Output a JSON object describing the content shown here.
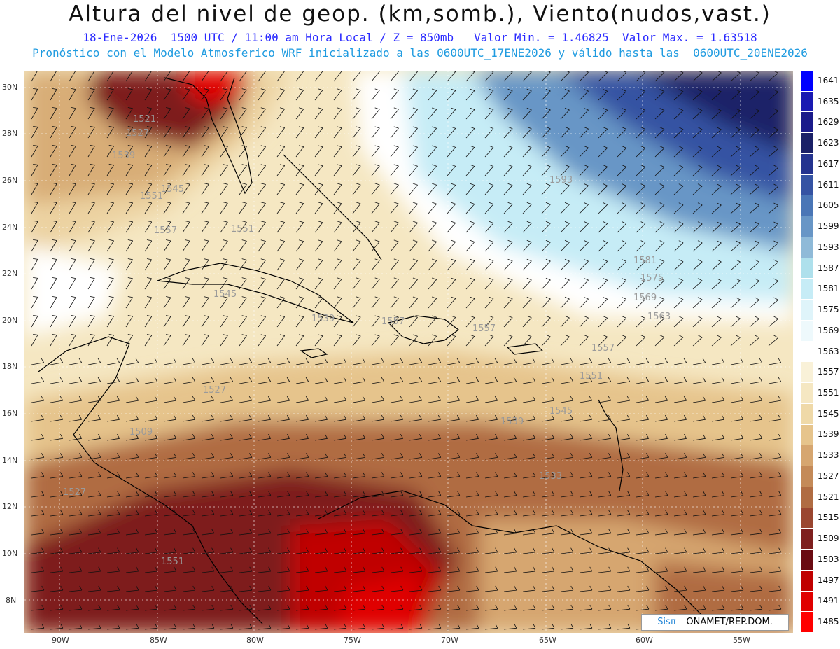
{
  "header": {
    "title": "Altura del nivel de geop. (km,somb.), Viento(nudos,vast.)",
    "subtitle_line1": "18-Ene-2026  1500 UTC / 11:00 am Hora Local / Z = 850mb   Valor Min. = 1.46825  Valor Max. = 1.63518",
    "subtitle_line2": "Pronóstico con el Modelo Atmosferico WRF inicializado a las 0600UTC_17ENE2026 y válido hasta las  0600UTC_20ENE2026"
  },
  "map": {
    "lat_labels": [
      "30N",
      "28N",
      "26N",
      "24N",
      "22N",
      "20N",
      "18N",
      "16N",
      "14N",
      "12N",
      "10N",
      "8N"
    ],
    "lon_labels": [
      "90W",
      "85W",
      "80W",
      "75W",
      "70W",
      "65W",
      "60W",
      "55W"
    ],
    "contour_labels": [
      "1521",
      "1527",
      "1539",
      "1545",
      "1551",
      "1557",
      "1551",
      "1545",
      "1539",
      "1527",
      "1509",
      "1551",
      "1557",
      "1557",
      "1557",
      "1551",
      "1545",
      "1539",
      "1593",
      "1581",
      "1575",
      "1569",
      "1563",
      "1527",
      "1533"
    ],
    "colors": {
      "darkred": "#6e0a14",
      "brown": "#a45a34",
      "tan": "#e6c79a",
      "cream": "#f7ecce",
      "white": "#ffffff",
      "lightblue": "#c6ecf6",
      "blue": "#3f6ab2",
      "navy": "#1a2067"
    }
  },
  "colorbar": {
    "levels": [
      "1641",
      "1635",
      "1629",
      "1623",
      "1617",
      "1611",
      "1605",
      "1599",
      "1593",
      "1587",
      "1581",
      "1575",
      "1569",
      "1563",
      "1557",
      "1551",
      "1545",
      "1539",
      "1533",
      "1527",
      "1521",
      "1515",
      "1509",
      "1503",
      "1497",
      "1491",
      "1485"
    ],
    "colors": [
      "#0000ff",
      "#1a1ab2",
      "#1a1a8a",
      "#1a2067",
      "#24338f",
      "#3553a3",
      "#4a76b6",
      "#6896c6",
      "#8fbad8",
      "#aee0ec",
      "#c6ecf6",
      "#dff4fa",
      "#eef9fc",
      "#ffffff",
      "#f9f1d8",
      "#f5e7c2",
      "#efd9a8",
      "#e6c48c",
      "#d6a670",
      "#c48a58",
      "#b06c42",
      "#9a4630",
      "#7e1f1e",
      "#6a0a12",
      "#c00000",
      "#e00000",
      "#ff0000"
    ]
  },
  "credit": {
    "brand": "Sisπ",
    "text": " – ONAMET/REP.DOM."
  }
}
